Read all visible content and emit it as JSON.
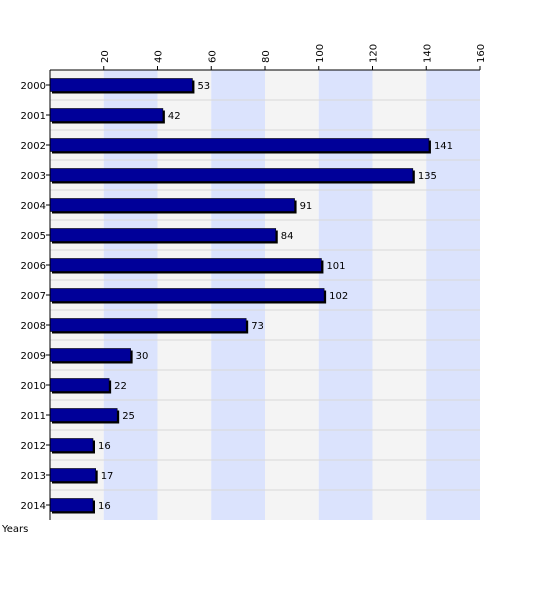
{
  "chart_data": {
    "type": "bar",
    "orientation": "horizontal",
    "categories": [
      "2000",
      "2001",
      "2002",
      "2003",
      "2004",
      "2005",
      "2006",
      "2007",
      "2008",
      "2009",
      "2010",
      "2011",
      "2012",
      "2013",
      "2014"
    ],
    "values": [
      53,
      42,
      141,
      135,
      91,
      84,
      101,
      102,
      73,
      30,
      22,
      25,
      16,
      17,
      16
    ],
    "title": "",
    "xlabel": "",
    "ylabel": "Years",
    "xlim": [
      0,
      160
    ],
    "x_ticks": [
      20,
      40,
      60,
      80,
      100,
      120,
      140,
      160
    ],
    "grid": true,
    "colors": {
      "bar": "#000099",
      "bar_shadow": "#000000",
      "band_light": "#f4f4f4",
      "band_blue": "#dbe3fd",
      "gridline": "#d8d8d8"
    }
  }
}
